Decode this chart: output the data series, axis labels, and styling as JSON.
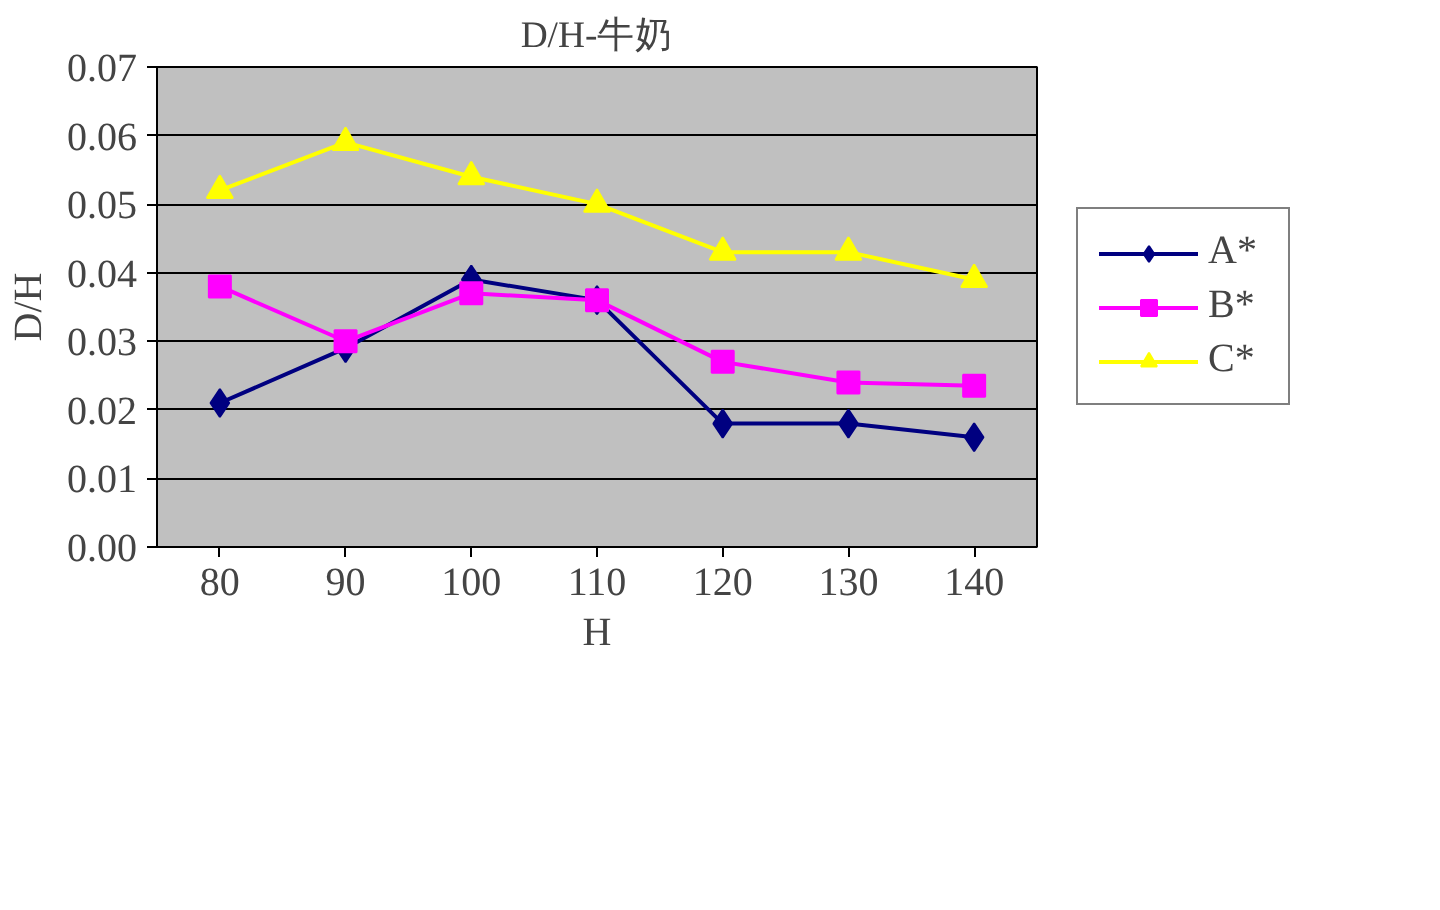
{
  "chart_data": {
    "type": "line",
    "title": "D/H-牛奶",
    "xlabel": "H",
    "ylabel": "D/H",
    "categories": [
      "80",
      "90",
      "100",
      "110",
      "120",
      "130",
      "140"
    ],
    "series": [
      {
        "name": "A*",
        "color": "#000080",
        "values": [
          0.021,
          0.029,
          0.039,
          0.036,
          0.018,
          0.018,
          0.016
        ],
        "marker": "diamond"
      },
      {
        "name": "B*",
        "color": "#ff00ff",
        "values": [
          0.038,
          0.03,
          0.037,
          0.036,
          0.027,
          0.024,
          0.0235
        ],
        "marker": "square"
      },
      {
        "name": "C*",
        "color": "#ffff00",
        "values": [
          0.052,
          0.059,
          0.054,
          0.05,
          0.043,
          0.043,
          0.039
        ],
        "marker": "triangle"
      }
    ],
    "ylim": [
      0,
      0.07
    ],
    "yticks": [
      {
        "value": 0,
        "label": "0.00"
      },
      0.01,
      0.02,
      0.03,
      0.04,
      0.05,
      0.06,
      0.07
    ],
    "grid": "y",
    "legend": "right",
    "line_style": "solid"
  }
}
